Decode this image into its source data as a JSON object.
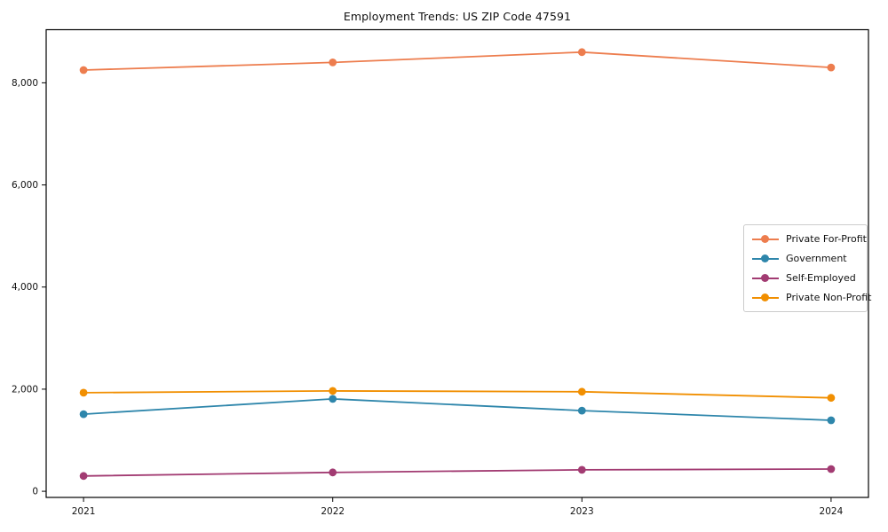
{
  "chart_data": {
    "type": "line",
    "title": "Employment Trends: US ZIP Code 47591",
    "xlabel": "",
    "ylabel": "",
    "x": [
      2021,
      2022,
      2023,
      2024
    ],
    "x_tick_labels": [
      "2021",
      "2022",
      "2023",
      "2024"
    ],
    "y_ticks": [
      0,
      2000,
      4000,
      6000,
      8000
    ],
    "y_tick_labels": [
      "0",
      "2,000",
      "4,000",
      "6,000",
      "8,000"
    ],
    "xlim": [
      2020.85,
      2024.15
    ],
    "ylim": [
      -120,
      9040
    ],
    "grid": false,
    "legend_position": "center-right",
    "series": [
      {
        "name": "Private For-Profit",
        "color": "#ED7D4E",
        "values": [
          8250,
          8400,
          8600,
          8300
        ]
      },
      {
        "name": "Government",
        "color": "#2E86AB",
        "values": [
          1510,
          1810,
          1580,
          1390
        ]
      },
      {
        "name": "Self-Employed",
        "color": "#A23B72",
        "values": [
          300,
          370,
          420,
          435
        ]
      },
      {
        "name": "Private Non-Profit",
        "color": "#F18F01",
        "values": [
          1930,
          1965,
          1950,
          1830
        ]
      }
    ]
  }
}
